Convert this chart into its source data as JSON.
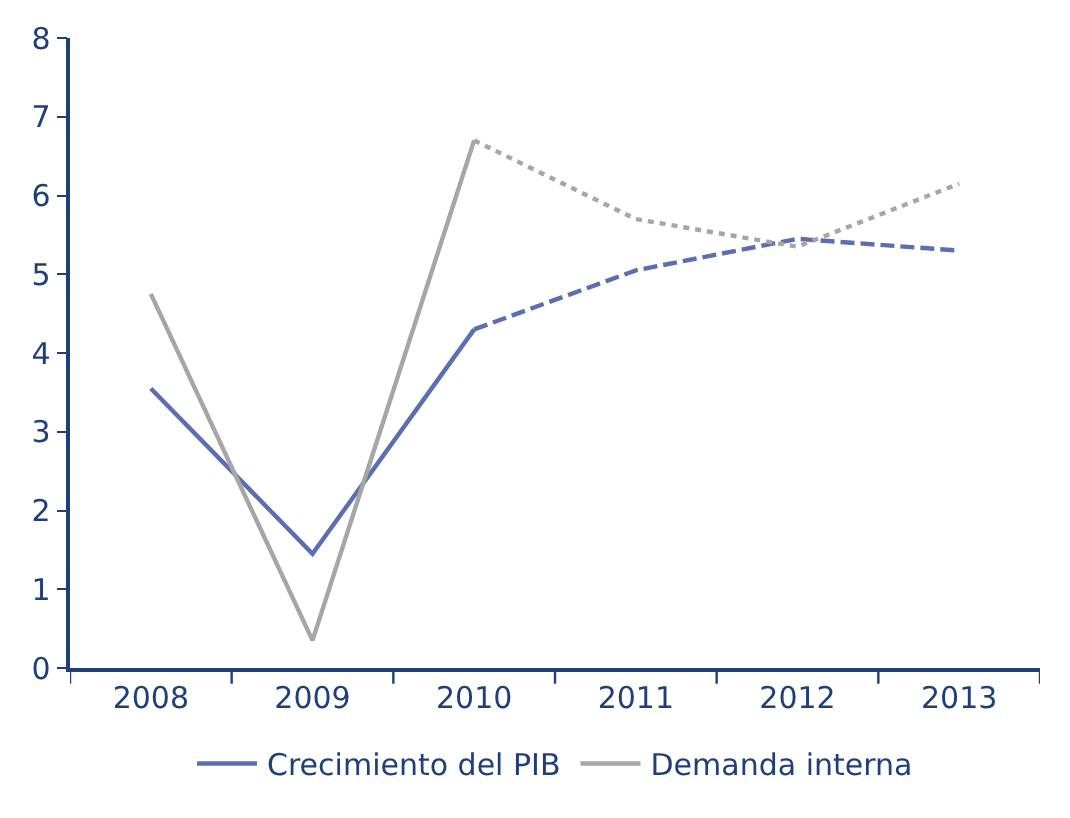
{
  "chart_data": {
    "type": "line",
    "categories": [
      "2008",
      "2009",
      "2010",
      "2011",
      "2012",
      "2013"
    ],
    "series": [
      {
        "name": "Crecimiento del PIB",
        "color": "#5b6fb0",
        "line_style": "solid",
        "values": [
          3.55,
          1.45,
          4.3,
          null,
          null,
          null
        ]
      },
      {
        "name": "Demanda interna",
        "color": "#a6a6a6",
        "line_style": "solid",
        "values": [
          4.75,
          0.35,
          6.7,
          null,
          null,
          null
        ]
      },
      {
        "color": "#5b6fb0",
        "line_style": "dashed",
        "values": [
          null,
          null,
          4.3,
          5.05,
          5.45,
          5.3
        ]
      },
      {
        "color": "#a6a6a6",
        "line_style": "dotted",
        "values": [
          null,
          null,
          6.7,
          5.7,
          5.35,
          6.15
        ]
      }
    ],
    "ylim": [
      0,
      8
    ],
    "yticks": [
      0,
      1,
      2,
      3,
      4,
      5,
      6,
      7,
      8
    ],
    "legend": "bottom",
    "marker": "none"
  }
}
